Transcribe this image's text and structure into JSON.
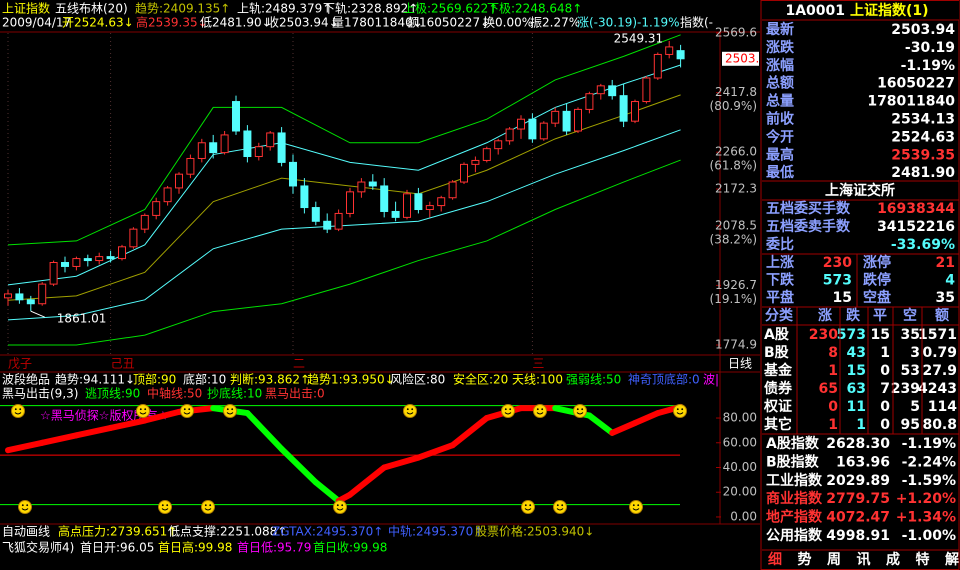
{
  "header": {
    "line1": [
      {
        "text": "上证指数",
        "color": "#ffff00"
      },
      {
        "text": "五线布林(20)",
        "color": "#ffffff"
      },
      {
        "text": "趋势:2409.135↑",
        "color": "#c0c000"
      },
      {
        "text": "上轨:2489.379↑",
        "color": "#ffffff"
      },
      {
        "text": "下轨:2328.892↑",
        "color": "#ffffff"
      },
      {
        "text": "上极:2569.622↑",
        "color": "#00ff00"
      },
      {
        "text": "下极:2248.648↑",
        "color": "#00ff00"
      }
    ],
    "line2": [
      {
        "text": "2009/04/17",
        "color": "#ffffff"
      },
      {
        "text": "开2524.63↓",
        "color": "#ffff00"
      },
      {
        "text": "高2539.35↓",
        "color": "#ff3232"
      },
      {
        "text": "低2481.90↓",
        "color": "#ffffff"
      },
      {
        "text": "收2503.94↓",
        "color": "#ffffff"
      },
      {
        "text": "量178011840↓",
        "color": "#ffffff"
      },
      {
        "text": "额16050227↓",
        "color": "#ffffff"
      },
      {
        "text": "换0.00%",
        "color": "#ffffff"
      },
      {
        "text": "振2.27%",
        "color": "#ffffff"
      },
      {
        "text": "涨(-30.19)-1.19%",
        "color": "#54fcfc"
      },
      {
        "text": "指数(-",
        "color": "#ffffff"
      }
    ]
  },
  "chart_data": {
    "type": "candlestick",
    "up_color": "#ff3232",
    "down_color": "#54fcfc",
    "ylim": [
      1774.9,
      2569.6
    ],
    "yticks": [
      2569.6,
      2417.8,
      {
        "value": 2266,
        "label": "2266.0"
      },
      2172.3,
      2078.5,
      1926.7,
      1774.9
    ],
    "ytick_pct": [
      null,
      "(80.9%)",
      "(61.8%)",
      null,
      "(38.2%)",
      "(19.1%)",
      null
    ],
    "candles": [
      [
        1895,
        1915,
        1875,
        1905
      ],
      [
        1905,
        1920,
        1880,
        1890
      ],
      [
        1890,
        1900,
        1861.01,
        1880
      ],
      [
        1880,
        1935,
        1875,
        1930
      ],
      [
        1930,
        1990,
        1925,
        1985
      ],
      [
        1985,
        2000,
        1960,
        1975
      ],
      [
        1975,
        2000,
        1965,
        1995
      ],
      [
        1995,
        2005,
        1975,
        1990
      ],
      [
        1990,
        2010,
        1980,
        2000
      ],
      [
        2000,
        2015,
        1985,
        1995
      ],
      [
        1995,
        2030,
        1990,
        2025
      ],
      [
        2025,
        2075,
        2020,
        2070
      ],
      [
        2070,
        2110,
        2060,
        2105
      ],
      [
        2105,
        2150,
        2095,
        2140
      ],
      [
        2140,
        2180,
        2130,
        2175
      ],
      [
        2175,
        2215,
        2160,
        2210
      ],
      [
        2210,
        2260,
        2200,
        2250
      ],
      [
        2250,
        2300,
        2240,
        2290
      ],
      [
        2290,
        2310,
        2250,
        2265
      ],
      [
        2265,
        2320,
        2260,
        2310
      ],
      [
        2395,
        2410,
        2310,
        2320
      ],
      [
        2320,
        2335,
        2240,
        2255
      ],
      [
        2255,
        2290,
        2245,
        2280
      ],
      [
        2280,
        2320,
        2270,
        2315
      ],
      [
        2315,
        2330,
        2230,
        2240
      ],
      [
        2240,
        2260,
        2160,
        2180
      ],
      [
        2180,
        2200,
        2110,
        2125
      ],
      [
        2125,
        2140,
        2080,
        2090
      ],
      [
        2090,
        2110,
        2060,
        2070
      ],
      [
        2070,
        2120,
        2065,
        2110
      ],
      [
        2110,
        2175,
        2100,
        2165
      ],
      [
        2165,
        2200,
        2150,
        2190
      ],
      [
        2190,
        2210,
        2170,
        2180
      ],
      [
        2180,
        2200,
        2100,
        2115
      ],
      [
        2115,
        2140,
        2090,
        2100
      ],
      [
        2100,
        2170,
        2095,
        2160
      ],
      [
        2160,
        2175,
        2110,
        2120
      ],
      [
        2120,
        2140,
        2100,
        2130
      ],
      [
        2130,
        2155,
        2115,
        2150
      ],
      [
        2150,
        2195,
        2145,
        2190
      ],
      [
        2190,
        2240,
        2185,
        2235
      ],
      [
        2235,
        2255,
        2215,
        2245
      ],
      [
        2245,
        2280,
        2240,
        2275
      ],
      [
        2275,
        2300,
        2260,
        2295
      ],
      [
        2295,
        2330,
        2285,
        2325
      ],
      [
        2325,
        2360,
        2300,
        2350
      ],
      [
        2350,
        2365,
        2290,
        2300
      ],
      [
        2300,
        2345,
        2295,
        2340
      ],
      [
        2340,
        2380,
        2330,
        2370
      ],
      [
        2370,
        2390,
        2310,
        2320
      ],
      [
        2320,
        2380,
        2315,
        2375
      ],
      [
        2375,
        2420,
        2365,
        2415
      ],
      [
        2415,
        2440,
        2400,
        2435
      ],
      [
        2435,
        2450,
        2400,
        2410
      ],
      [
        2410,
        2440,
        2330,
        2345
      ],
      [
        2345,
        2400,
        2340,
        2395
      ],
      [
        2395,
        2460,
        2390,
        2455
      ],
      [
        2455,
        2520,
        2450,
        2515
      ],
      [
        2515,
        2549.31,
        2505,
        2534.13
      ],
      [
        2524.63,
        2539.35,
        2481.9,
        2503.94
      ]
    ],
    "bands": [
      {
        "color": "#00e000",
        "x": [
          0,
          6,
          12,
          18,
          24,
          30,
          36,
          42,
          48,
          54,
          59
        ],
        "values": [
          2030,
          2040,
          2120,
          2380,
          2380,
          2290,
          2290,
          2350,
          2450,
          2510,
          2565
        ]
      },
      {
        "color": "#54fcfc",
        "x": [
          0,
          6,
          12,
          18,
          24,
          30,
          36,
          42,
          48,
          54,
          59
        ],
        "values": [
          1928,
          1950,
          2030,
          2260,
          2290,
          2240,
          2220,
          2290,
          2380,
          2440,
          2488
        ]
      },
      {
        "color": "#a0a000",
        "x": [
          0,
          6,
          12,
          18,
          24,
          30,
          36,
          42,
          48,
          54,
          59
        ],
        "values": [
          1889,
          1900,
          1960,
          2140,
          2200,
          2180,
          2160,
          2220,
          2300,
          2360,
          2412
        ]
      },
      {
        "color": "#54fcfc",
        "x": [
          0,
          6,
          12,
          18,
          24,
          30,
          36,
          42,
          48,
          54,
          59
        ],
        "values": [
          1839,
          1850,
          1890,
          2020,
          2070,
          2080,
          2090,
          2140,
          2210,
          2270,
          2323
        ]
      },
      {
        "color": "#00e000",
        "x": [
          0,
          6,
          12,
          18,
          24,
          30,
          36,
          42,
          48,
          54,
          59
        ],
        "values": [
          1775,
          1775,
          1800,
          1860,
          1880,
          1930,
          1990,
          2040,
          2120,
          2190,
          2246
        ]
      }
    ],
    "annotations": [
      {
        "x": 58,
        "value": 2549.31
      },
      {
        "x": 2,
        "value": 1861.01
      }
    ],
    "last_price": 2503.9,
    "x_labels": [
      {
        "x": 0,
        "label": "戊子"
      },
      {
        "x": 9,
        "label": "己丑"
      },
      {
        "x": 25,
        "label": "二"
      },
      {
        "x": 46,
        "label": "三"
      }
    ],
    "period": "日线"
  },
  "indicator_info": {
    "line1": [
      {
        "text": "波段绝品",
        "color": "#ffffff"
      },
      {
        "text": "趋势:94.111↓",
        "color": "#ffffff"
      },
      {
        "text": "顶部:90",
        "color": "#ffff00"
      },
      {
        "text": "底部:10",
        "color": "#ffffff"
      },
      {
        "text": "判断:93.862↑",
        "color": "#ffff00"
      },
      {
        "text": "趋势1:93.950↓",
        "color": "#ffff00"
      },
      {
        "text": "风险区:80",
        "color": "#ffffff"
      },
      {
        "text": "安全区:20",
        "color": "#ffff00"
      },
      {
        "text": "天线:100",
        "color": "#ffff00"
      },
      {
        "text": "强弱线:50",
        "color": "#00ff00"
      },
      {
        "text": "神奇顶底部:0",
        "color": "#4060ff"
      },
      {
        "text": "波|",
        "color": "#ff00ff"
      }
    ],
    "line2": [
      {
        "text": "黑马出击(9,3)",
        "color": "#ffffff"
      },
      {
        "text": "逃顶线:90",
        "color": "#00ff00"
      },
      {
        "text": "中轴线:50",
        "color": "#ff3232"
      },
      {
        "text": "抄底线:10",
        "color": "#00ff00"
      },
      {
        "text": "黑马出击:0",
        "color": "#ff3232"
      }
    ],
    "watermark": "☆黑马侦探☆版权所有☆"
  },
  "indicator": {
    "type": "line",
    "ylim": [
      -6.5,
      96.2
    ],
    "yticks": [
      {
        "value": 80,
        "label": "80.00"
      },
      {
        "value": 60,
        "label": "60.00"
      },
      {
        "value": 40,
        "label": "40.00"
      },
      {
        "value": 20,
        "label": "20.00"
      },
      {
        "value": 0,
        "label": "0.00"
      }
    ],
    "levels": [
      {
        "value": 90,
        "color": "#00ff00"
      },
      {
        "value": 50,
        "color": "#ff0000"
      },
      {
        "value": 10,
        "color": "#00ff00"
      }
    ],
    "up_color": "#ff0000",
    "down_color": "#00ff00",
    "x": [
      0,
      3,
      6,
      9,
      12,
      15,
      18,
      21,
      24,
      27,
      29,
      30,
      33,
      36,
      39,
      42,
      45,
      48,
      51,
      53,
      55,
      57,
      59
    ],
    "values": [
      54,
      60,
      66,
      72,
      78,
      85,
      88,
      84,
      55,
      28,
      13,
      18,
      40,
      48,
      58,
      80,
      88,
      88,
      82,
      68,
      76,
      84,
      89
    ]
  },
  "footer": {
    "line1": [
      {
        "text": "自动画线",
        "color": "#ffffff"
      },
      {
        "text": "高点压力:2739.651↑",
        "color": "#ffff00"
      },
      {
        "text": "低点支撑:2251.088↑",
        "color": "#ffffff"
      },
      {
        "text": "ZGTAX:2495.370↑",
        "color": "#4060ff"
      },
      {
        "text": "中轨:2495.370↑",
        "color": "#4060ff"
      },
      {
        "text": "股票价格:2503.940↓",
        "color": "#c0c000"
      }
    ],
    "line2": [
      {
        "text": "飞狐交易师4)",
        "color": "#ffffff"
      },
      {
        "text": "首日开:96.05",
        "color": "#ffffff"
      },
      {
        "text": "首日高:99.98",
        "color": "#ffff00"
      },
      {
        "text": "首日低:95.79",
        "color": "#ff00ff"
      },
      {
        "text": "首日收:99.98",
        "color": "#00ff00"
      }
    ]
  },
  "quote": {
    "code": "1A0001",
    "name": "上证指数(1)",
    "rows": [
      {
        "label": "最新",
        "value": "2503.94",
        "color": "#ffffff"
      },
      {
        "label": "涨跌",
        "value": "-30.19",
        "color": "#ffffff"
      },
      {
        "label": "涨幅",
        "value": "-1.19%",
        "color": "#ffffff"
      },
      {
        "label": "总额",
        "value": "16050227",
        "color": "#ffffff"
      },
      {
        "label": "总量",
        "value": "178011840",
        "color": "#ffffff"
      },
      {
        "label": "前收",
        "value": "2534.13",
        "color": "#ffffff"
      },
      {
        "label": "今开",
        "value": "2524.63",
        "color": "#ffffff"
      },
      {
        "label": "最高",
        "value": "2539.35",
        "color": "#ff3232"
      },
      {
        "label": "最低",
        "value": "2481.90",
        "color": "#ffffff"
      }
    ],
    "exchange": "上海证交所",
    "orders": [
      {
        "label": "五档委买手数",
        "value": "16938344",
        "color": "#ff3232"
      },
      {
        "label": "五档委卖手数",
        "value": "34152216",
        "color": "#ffffff"
      },
      {
        "label": "委比",
        "value": "-33.69%",
        "color": "#54fcfc"
      }
    ],
    "breadth": [
      [
        {
          "label": "上涨",
          "value": "230",
          "color": "#ff3232"
        },
        {
          "label": "涨停",
          "value": "21",
          "color": "#ff3232"
        }
      ],
      [
        {
          "label": "下跌",
          "value": "573",
          "color": "#54fcfc"
        },
        {
          "label": "跌停",
          "value": "4",
          "color": "#54fcfc"
        }
      ],
      [
        {
          "label": "平盘",
          "value": "15",
          "color": "#ffffff"
        },
        {
          "label": "空盘",
          "value": "35",
          "color": "#ffffff"
        }
      ]
    ],
    "table": {
      "header": [
        "分类",
        "涨",
        "跌",
        "平",
        "空",
        "额"
      ],
      "rows": [
        [
          "A股",
          "230",
          "573",
          "15",
          "35",
          "1571"
        ],
        [
          "B股",
          "8",
          "43",
          "1",
          "3",
          "0.79"
        ],
        [
          "基金",
          "1",
          "15",
          "0",
          "53",
          "27.9"
        ],
        [
          "债券",
          "65",
          "63",
          "7",
          "239",
          "4243"
        ],
        [
          "权证",
          "0",
          "11",
          "0",
          "5",
          "114"
        ],
        [
          "其它",
          "1",
          "1",
          "0",
          "95",
          "80.8"
        ]
      ]
    },
    "indices": [
      {
        "name": "A股指数",
        "value": "2628.30",
        "change": "-1.19%",
        "color": "#ffffff"
      },
      {
        "name": "B股指数",
        "value": "163.96",
        "change": "-2.24%",
        "color": "#ffffff"
      },
      {
        "name": "工业指数",
        "value": "2029.89",
        "change": "-1.59%",
        "color": "#ffffff"
      },
      {
        "name": "商业指数",
        "value": "2779.75",
        "change": "+1.20%",
        "color": "#ff3232"
      },
      {
        "name": "地产指数",
        "value": "4072.47",
        "change": "+1.34%",
        "color": "#ff3232"
      },
      {
        "name": "公用指数",
        "value": "4998.91",
        "change": "-1.00%",
        "color": "#ffffff"
      }
    ],
    "tabs": [
      "细",
      "势",
      "周",
      "讯",
      "成",
      "特",
      "解"
    ]
  }
}
